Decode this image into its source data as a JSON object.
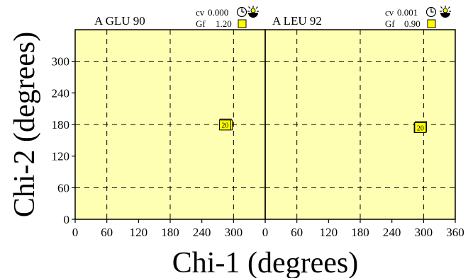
{
  "colors": {
    "panel_fill": "#ffffb4",
    "point_fill": "#ffff00",
    "grid": "#000000",
    "axis": "#000000"
  },
  "axes": {
    "xlabel": "Chi-1 (degrees)",
    "ylabel": "Chi-2 (degrees)",
    "xlim": [
      0,
      360
    ],
    "ylim": [
      0,
      360
    ],
    "left_panel_xticks": [
      "0",
      "60",
      "120",
      "180",
      "240",
      "300"
    ],
    "right_panel_xticks": [
      "0",
      "60",
      "120",
      "180",
      "240",
      "300",
      "360"
    ],
    "yticks": [
      "0",
      "60",
      "120",
      "180",
      "240",
      "300"
    ],
    "grid": "dashed"
  },
  "chart_data": [
    {
      "type": "scatter",
      "title": "A GLU 90",
      "cv_label": "cv",
      "cv_value": "0.000",
      "gf_label": "Gf",
      "gf_value": "1.20",
      "cv_icons": [
        "clock-icon",
        "sun-icon"
      ],
      "gf_icon": "yellow-square-icon",
      "xlim": [
        0,
        360
      ],
      "ylim": [
        0,
        360
      ],
      "points": [
        {
          "x": 285,
          "y": 181,
          "label": ""
        },
        {
          "x": 287,
          "y": 179,
          "label": ""
        },
        {
          "x": 284,
          "y": 179,
          "label": "20"
        }
      ]
    },
    {
      "type": "scatter",
      "title": "A LEU 92",
      "cv_label": "cv",
      "cv_value": "0.001",
      "gf_label": "Gf",
      "gf_value": "0.90",
      "cv_icons": [
        "clock-icon",
        "sun-icon"
      ],
      "gf_icon": "yellow-square-icon",
      "xlim": [
        0,
        360
      ],
      "ylim": [
        0,
        360
      ],
      "points": [
        {
          "x": 295,
          "y": 176,
          "label": ""
        },
        {
          "x": 293,
          "y": 174,
          "label": ""
        },
        {
          "x": 294,
          "y": 174,
          "label": "20"
        }
      ]
    }
  ]
}
